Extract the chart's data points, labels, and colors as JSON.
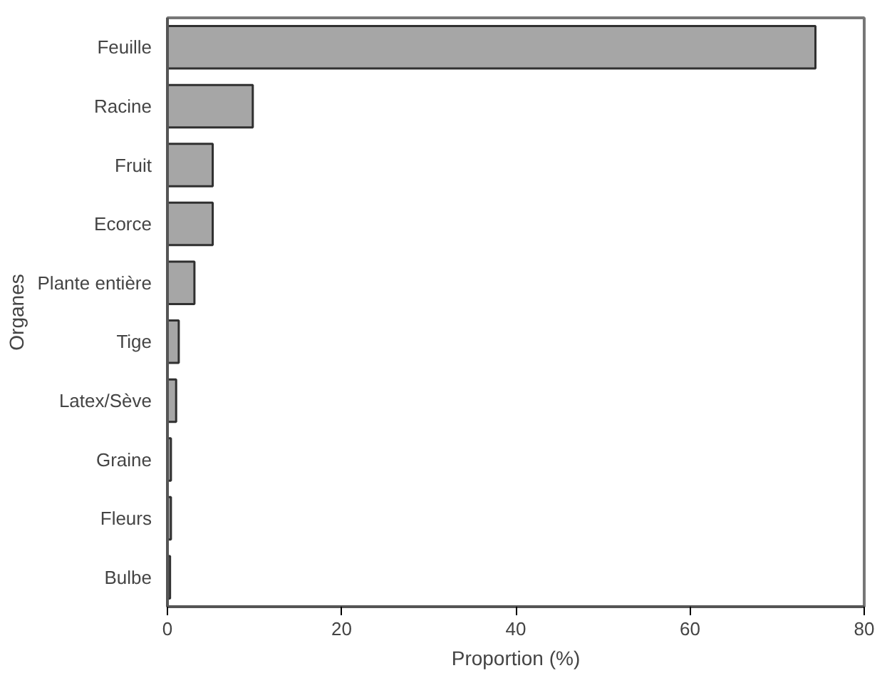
{
  "chart_data": {
    "type": "bar",
    "orientation": "horizontal",
    "xlabel": "Proportion (%)",
    "ylabel": "Organes",
    "categories": [
      "Feuille",
      "Racine",
      "Fruit",
      "Ecorce",
      "Plante entière",
      "Tige",
      "Latex/Sève",
      "Graine",
      "Fleurs",
      "Bulbe"
    ],
    "values": [
      74.4,
      9.8,
      5.2,
      5.2,
      3.1,
      1.3,
      1.0,
      0.4,
      0.4,
      0.3
    ],
    "color": "#a6a6a6",
    "xlim": [
      0,
      80
    ],
    "xticks": [
      0,
      20,
      40,
      60,
      80
    ],
    "grid": false
  }
}
